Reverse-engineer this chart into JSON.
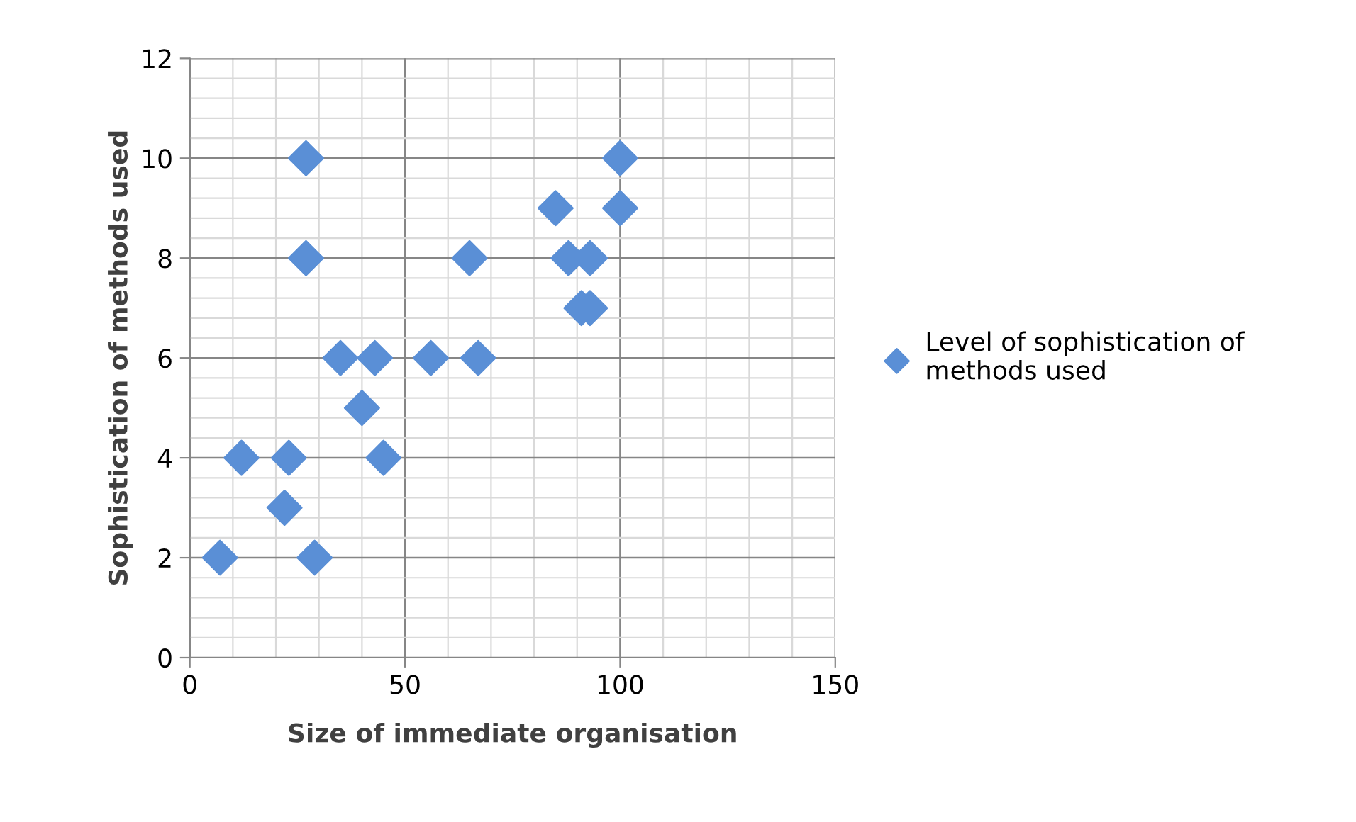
{
  "chart_data": {
    "type": "scatter",
    "xlabel": "Size of immediate organisation",
    "ylabel": "Sophistication of methods used",
    "xlim": [
      0,
      150
    ],
    "xticks": [
      0,
      50,
      100,
      150
    ],
    "ylim": [
      0,
      12
    ],
    "yticks": [
      0,
      2,
      4,
      6,
      8,
      10,
      12
    ],
    "grid": true,
    "legend": "right",
    "marker": "diamond",
    "series": [
      {
        "name": "Level of sophistication of methods used",
        "color": "#5a8fd6",
        "x": [
          7,
          12,
          22,
          23,
          27,
          27,
          29,
          35,
          40,
          43,
          45,
          56,
          65,
          67,
          85,
          88,
          91,
          93,
          93,
          100,
          100
        ],
        "values": [
          2,
          4,
          3,
          4,
          10,
          8,
          2,
          6,
          5,
          6,
          4,
          6,
          8,
          6,
          9,
          8,
          7,
          8,
          7,
          10,
          9
        ]
      }
    ]
  }
}
